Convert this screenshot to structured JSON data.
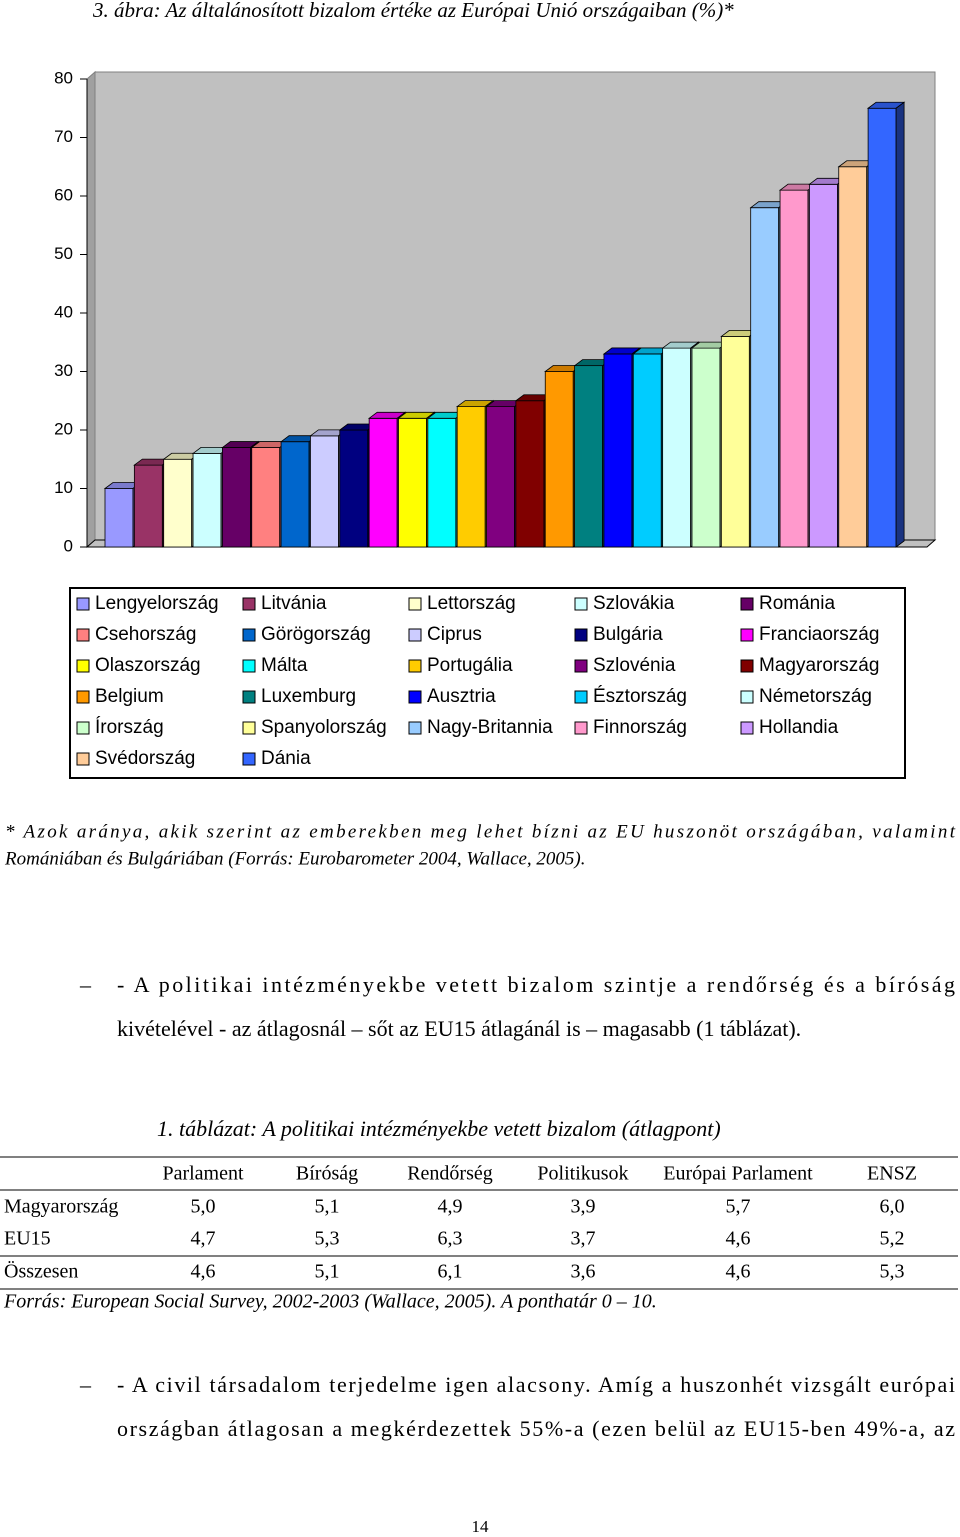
{
  "chart_data": {
    "type": "bar",
    "title": "3. ábra: Az általánosított bizalom értéke az Európai Unió országaiban (%)*",
    "ylim": [
      0,
      80
    ],
    "yticks": [
      0,
      10,
      20,
      30,
      40,
      50,
      60,
      70,
      80
    ],
    "grid": false,
    "legend": "bottom",
    "series": [
      {
        "name": "Lengyelország",
        "color": "#9999ff",
        "values": [
          10
        ]
      },
      {
        "name": "Litvánia",
        "color": "#993366",
        "values": [
          14
        ]
      },
      {
        "name": "Lettország",
        "color": "#ffffcc",
        "values": [
          15
        ]
      },
      {
        "name": "Szlovákia",
        "color": "#ccffff",
        "values": [
          16
        ]
      },
      {
        "name": "Románia",
        "color": "#660066",
        "values": [
          17
        ]
      },
      {
        "name": "Csehország",
        "color": "#ff8080",
        "values": [
          17
        ]
      },
      {
        "name": "Görögország",
        "color": "#0066cc",
        "values": [
          18
        ]
      },
      {
        "name": "Ciprus",
        "color": "#ccccff",
        "values": [
          19
        ]
      },
      {
        "name": "Bulgária",
        "color": "#000080",
        "values": [
          20
        ]
      },
      {
        "name": "Franciaország",
        "color": "#ff00ff",
        "values": [
          22
        ]
      },
      {
        "name": "Olaszország",
        "color": "#ffff00",
        "values": [
          22
        ]
      },
      {
        "name": "Málta",
        "color": "#00ffff",
        "values": [
          22
        ]
      },
      {
        "name": "Portugália",
        "color": "#ffcc00",
        "values": [
          24
        ]
      },
      {
        "name": "Szlovénia",
        "color": "#800080",
        "values": [
          24
        ]
      },
      {
        "name": "Magyarország",
        "color": "#800000",
        "values": [
          25
        ]
      },
      {
        "name": "Belgium",
        "color": "#ff9900",
        "values": [
          30
        ]
      },
      {
        "name": "Luxemburg",
        "color": "#008080",
        "values": [
          31
        ]
      },
      {
        "name": "Ausztria",
        "color": "#0000ff",
        "values": [
          33
        ]
      },
      {
        "name": "Észtország",
        "color": "#00ccff",
        "values": [
          33
        ]
      },
      {
        "name": "Németország",
        "color": "#ccffff",
        "values": [
          34
        ]
      },
      {
        "name": "Írország",
        "color": "#ccffcc",
        "values": [
          34
        ]
      },
      {
        "name": "Spanyolország",
        "color": "#ffff99",
        "values": [
          36
        ]
      },
      {
        "name": "Nagy-Britannia",
        "color": "#99ccff",
        "values": [
          58
        ]
      },
      {
        "name": "Finnország",
        "color": "#ff99cc",
        "values": [
          61
        ]
      },
      {
        "name": "Hollandia",
        "color": "#cc99ff",
        "values": [
          62
        ]
      },
      {
        "name": "Svédország",
        "color": "#ffcc99",
        "values": [
          65
        ]
      },
      {
        "name": "Dánia",
        "color": "#3366ff",
        "values": [
          75
        ]
      }
    ]
  },
  "note": [
    "* Azok aránya, akik szerint az emberekben meg lehet bízni az EU huszonöt országában, valamint",
    "Romániában és Bulgáriában  (Forrás: Eurobarometer 2004, Wallace, 2005)."
  ],
  "paragraph1": {
    "bullet": "–",
    "lines": [
      "- A politikai intézményekbe vetett bizalom szintje a rendőrség és a bíróság",
      "kivételével - az átlagosnál – sőt az EU15 átlagánál is – magasabb (1 táblázat)."
    ]
  },
  "table": {
    "title": "1. táblázat: A politikai intézményekbe vetett bizalom (átlagpont)",
    "headers": [
      "Parlament",
      "Bíróság",
      "Rendőrség",
      "Politikusok",
      "Európai Parlament",
      "ENSZ"
    ],
    "rows": [
      [
        "Magyarország",
        "5,0",
        "5,1",
        "4,9",
        "3,9",
        "5,7",
        "6,0"
      ],
      [
        "EU15",
        "4,7",
        "5,3",
        "6,3",
        "3,7",
        "4,6",
        "5,2"
      ],
      [
        "Összesen",
        "4,6",
        "5,1",
        "6,1",
        "3,6",
        "4,6",
        "5,3"
      ]
    ],
    "source": "Forrás: European Social Survey, 2002-2003 (Wallace, 2005). A ponthatár 0 – 10."
  },
  "paragraph2": {
    "bullet": "–",
    "lines": [
      "- A civil társadalom terjedelme igen alacsony. Amíg a huszonhét vizsgált európai",
      "országban átlagosan a megkérdezettek 55%-a (ezen belül az EU15-ben 49%-a, az"
    ]
  },
  "page_number": "14"
}
